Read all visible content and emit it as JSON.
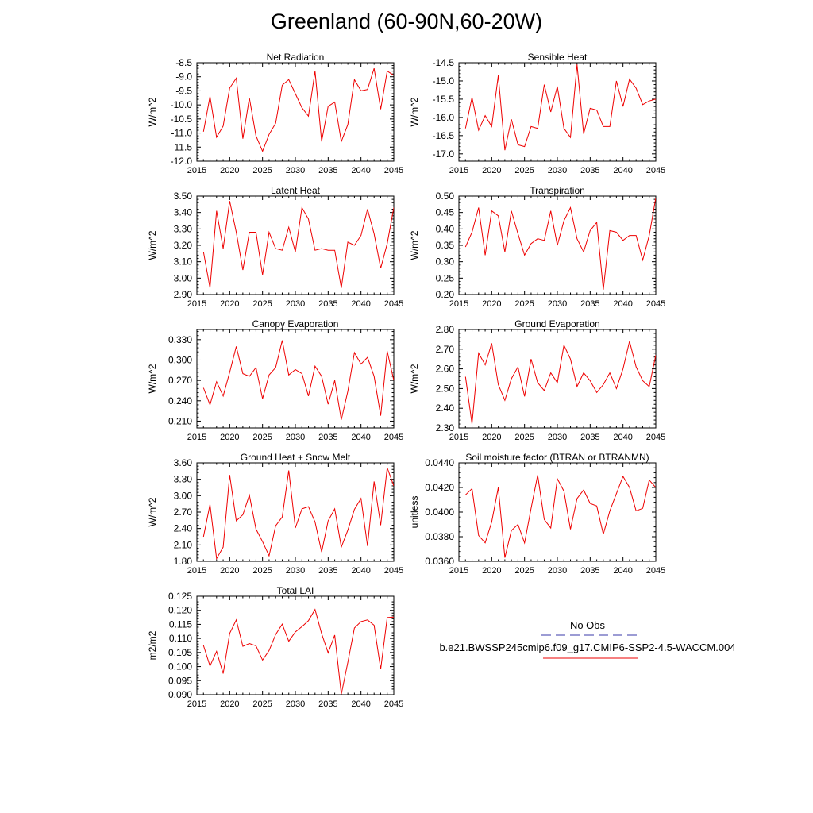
{
  "title": "Greenland (60-90N,60-20W)",
  "colors": {
    "series": "#ee0000",
    "obs": "#3a3aa8",
    "axis": "#000000"
  },
  "legend": {
    "obs_label": "No Obs",
    "case_label": "b.e21.BWSSP245cmip6.f09_g17.CMIP6-SSP2-4.5-WACCM.004"
  },
  "chart_data": [
    {
      "type": "line",
      "title": "Net Radiation",
      "xlabel": "",
      "ylabel": "W/m^2",
      "xlim": [
        2015,
        2045
      ],
      "xticks": [
        2015,
        2020,
        2025,
        2030,
        2035,
        2040,
        2045
      ],
      "xtick_labels": [
        "2015",
        "2020",
        "2025",
        "2030",
        "2035",
        "2040",
        "2045"
      ],
      "ylim": [
        -12.0,
        -8.5
      ],
      "yticks": [
        -12.0,
        -11.5,
        -11.0,
        -10.5,
        -10.0,
        -9.5,
        -9.0,
        -8.5
      ],
      "ytick_labels": [
        "-12.0",
        "-11.5",
        "-11.0",
        "-10.5",
        "-10.0",
        "-9.5",
        "-9.0",
        "-8.5"
      ],
      "x": [
        2016,
        2017,
        2018,
        2019,
        2020,
        2021,
        2022,
        2023,
        2024,
        2025,
        2026,
        2027,
        2028,
        2029,
        2030,
        2031,
        2032,
        2033,
        2034,
        2035,
        2036,
        2037,
        2038,
        2039,
        2040,
        2041,
        2042,
        2043,
        2044,
        2045
      ],
      "values": [
        -10.95,
        -9.7,
        -11.15,
        -10.75,
        -9.4,
        -9.05,
        -11.2,
        -9.75,
        -11.1,
        -11.65,
        -11.05,
        -10.65,
        -9.3,
        -9.1,
        -9.6,
        -10.1,
        -10.4,
        -8.8,
        -11.3,
        -10.05,
        -9.9,
        -11.3,
        -10.7,
        -9.1,
        -9.5,
        -9.45,
        -8.7,
        -10.15,
        -8.8,
        -8.95
      ]
    },
    {
      "type": "line",
      "title": "Sensible Heat",
      "xlabel": "",
      "ylabel": "W/m^2",
      "xlim": [
        2015,
        2045
      ],
      "xticks": [
        2015,
        2020,
        2025,
        2030,
        2035,
        2040,
        2045
      ],
      "xtick_labels": [
        "2015",
        "2020",
        "2025",
        "2030",
        "2035",
        "2040",
        "2045"
      ],
      "ylim": [
        -17.2,
        -14.5
      ],
      "yticks": [
        -17.0,
        -16.5,
        -16.0,
        -15.5,
        -15.0,
        -14.5
      ],
      "ytick_labels": [
        "-17.0",
        "-16.5",
        "-16.0",
        "-15.5",
        "-15.0",
        "-14.5"
      ],
      "x": [
        2016,
        2017,
        2018,
        2019,
        2020,
        2021,
        2022,
        2023,
        2024,
        2025,
        2026,
        2027,
        2028,
        2029,
        2030,
        2031,
        2032,
        2033,
        2034,
        2035,
        2036,
        2037,
        2038,
        2039,
        2040,
        2041,
        2042,
        2043,
        2044,
        2045
      ],
      "values": [
        -16.3,
        -15.45,
        -16.35,
        -15.95,
        -16.25,
        -14.85,
        -16.9,
        -16.05,
        -16.75,
        -16.8,
        -16.25,
        -16.3,
        -15.1,
        -15.85,
        -15.15,
        -16.3,
        -16.55,
        -14.55,
        -16.45,
        -15.75,
        -15.8,
        -16.25,
        -16.25,
        -15.0,
        -15.7,
        -14.95,
        -15.2,
        -15.65,
        -15.55,
        -15.5
      ]
    },
    {
      "type": "line",
      "title": "Latent Heat",
      "xlabel": "",
      "ylabel": "W/m^2",
      "xlim": [
        2015,
        2045
      ],
      "xticks": [
        2015,
        2020,
        2025,
        2030,
        2035,
        2040,
        2045
      ],
      "xtick_labels": [
        "2015",
        "2020",
        "2025",
        "2030",
        "2035",
        "2040",
        "2045"
      ],
      "ylim": [
        2.9,
        3.5
      ],
      "yticks": [
        2.9,
        3.0,
        3.1,
        3.2,
        3.3,
        3.4,
        3.5
      ],
      "ytick_labels": [
        "2.90",
        "3.00",
        "3.10",
        "3.20",
        "3.30",
        "3.40",
        "3.50"
      ],
      "x": [
        2016,
        2017,
        2018,
        2019,
        2020,
        2021,
        2022,
        2023,
        2024,
        2025,
        2026,
        2027,
        2028,
        2029,
        2030,
        2031,
        2032,
        2033,
        2034,
        2035,
        2036,
        2037,
        2038,
        2039,
        2040,
        2041,
        2042,
        2043,
        2044,
        2045
      ],
      "values": [
        3.16,
        2.94,
        3.41,
        3.18,
        3.47,
        3.28,
        3.05,
        3.28,
        3.28,
        3.02,
        3.28,
        3.18,
        3.17,
        3.31,
        3.16,
        3.43,
        3.36,
        3.17,
        3.18,
        3.17,
        3.17,
        2.94,
        3.22,
        3.2,
        3.26,
        3.42,
        3.27,
        3.06,
        3.21,
        3.43
      ]
    },
    {
      "type": "line",
      "title": "Transpiration",
      "xlabel": "",
      "ylabel": "W/m^2",
      "xlim": [
        2015,
        2045
      ],
      "xticks": [
        2015,
        2020,
        2025,
        2030,
        2035,
        2040,
        2045
      ],
      "xtick_labels": [
        "2015",
        "2020",
        "2025",
        "2030",
        "2035",
        "2040",
        "2045"
      ],
      "ylim": [
        0.2,
        0.5
      ],
      "yticks": [
        0.2,
        0.25,
        0.3,
        0.35,
        0.4,
        0.45,
        0.5
      ],
      "ytick_labels": [
        "0.20",
        "0.25",
        "0.30",
        "0.35",
        "0.40",
        "0.45",
        "0.50"
      ],
      "x": [
        2016,
        2017,
        2018,
        2019,
        2020,
        2021,
        2022,
        2023,
        2024,
        2025,
        2026,
        2027,
        2028,
        2029,
        2030,
        2031,
        2032,
        2033,
        2034,
        2035,
        2036,
        2037,
        2038,
        2039,
        2040,
        2041,
        2042,
        2043,
        2044,
        2045
      ],
      "values": [
        0.345,
        0.39,
        0.465,
        0.32,
        0.455,
        0.44,
        0.33,
        0.455,
        0.385,
        0.32,
        0.355,
        0.37,
        0.365,
        0.455,
        0.35,
        0.425,
        0.465,
        0.37,
        0.33,
        0.395,
        0.42,
        0.215,
        0.395,
        0.39,
        0.365,
        0.38,
        0.38,
        0.305,
        0.38,
        0.495
      ]
    },
    {
      "type": "line",
      "title": "Canopy Evaporation",
      "xlabel": "",
      "ylabel": "W/m^2",
      "xlim": [
        2015,
        2045
      ],
      "xticks": [
        2015,
        2020,
        2025,
        2030,
        2035,
        2040,
        2045
      ],
      "xtick_labels": [
        "2015",
        "2020",
        "2025",
        "2030",
        "2035",
        "2040",
        "2045"
      ],
      "ylim": [
        0.2,
        0.345
      ],
      "yticks": [
        0.21,
        0.24,
        0.27,
        0.3,
        0.33
      ],
      "ytick_labels": [
        "0.210",
        "0.240",
        "0.270",
        "0.300",
        "0.330"
      ],
      "x": [
        2016,
        2017,
        2018,
        2019,
        2020,
        2021,
        2022,
        2023,
        2024,
        2025,
        2026,
        2027,
        2028,
        2029,
        2030,
        2031,
        2032,
        2033,
        2034,
        2035,
        2036,
        2037,
        2038,
        2039,
        2040,
        2041,
        2042,
        2043,
        2044,
        2045
      ],
      "values": [
        0.259,
        0.234,
        0.268,
        0.247,
        0.282,
        0.32,
        0.28,
        0.276,
        0.289,
        0.243,
        0.278,
        0.289,
        0.329,
        0.278,
        0.286,
        0.28,
        0.247,
        0.291,
        0.276,
        0.235,
        0.27,
        0.212,
        0.254,
        0.311,
        0.294,
        0.304,
        0.276,
        0.218,
        0.313,
        0.27
      ]
    },
    {
      "type": "line",
      "title": "Ground Evaporation",
      "xlabel": "",
      "ylabel": "W/m^2",
      "xlim": [
        2015,
        2045
      ],
      "xticks": [
        2015,
        2020,
        2025,
        2030,
        2035,
        2040,
        2045
      ],
      "xtick_labels": [
        "2015",
        "2020",
        "2025",
        "2030",
        "2035",
        "2040",
        "2045"
      ],
      "ylim": [
        2.3,
        2.8
      ],
      "yticks": [
        2.3,
        2.4,
        2.5,
        2.6,
        2.7,
        2.8
      ],
      "ytick_labels": [
        "2.30",
        "2.40",
        "2.50",
        "2.60",
        "2.70",
        "2.80"
      ],
      "x": [
        2016,
        2017,
        2018,
        2019,
        2020,
        2021,
        2022,
        2023,
        2024,
        2025,
        2026,
        2027,
        2028,
        2029,
        2030,
        2031,
        2032,
        2033,
        2034,
        2035,
        2036,
        2037,
        2038,
        2039,
        2040,
        2041,
        2042,
        2043,
        2044,
        2045
      ],
      "values": [
        2.56,
        2.32,
        2.68,
        2.62,
        2.73,
        2.52,
        2.44,
        2.55,
        2.61,
        2.46,
        2.65,
        2.53,
        2.49,
        2.58,
        2.53,
        2.72,
        2.65,
        2.51,
        2.58,
        2.54,
        2.48,
        2.52,
        2.58,
        2.5,
        2.6,
        2.74,
        2.61,
        2.54,
        2.51,
        2.67
      ]
    },
    {
      "type": "line",
      "title": "Ground Heat + Snow Melt",
      "xlabel": "",
      "ylabel": "W/m^2",
      "xlim": [
        2015,
        2045
      ],
      "xticks": [
        2015,
        2020,
        2025,
        2030,
        2035,
        2040,
        2045
      ],
      "xtick_labels": [
        "2015",
        "2020",
        "2025",
        "2030",
        "2035",
        "2040",
        "2045"
      ],
      "ylim": [
        1.8,
        3.6
      ],
      "yticks": [
        1.8,
        2.1,
        2.4,
        2.7,
        3.0,
        3.3,
        3.6
      ],
      "ytick_labels": [
        "1.80",
        "2.10",
        "2.40",
        "2.70",
        "3.00",
        "3.30",
        "3.60"
      ],
      "x": [
        2016,
        2017,
        2018,
        2019,
        2020,
        2021,
        2022,
        2023,
        2024,
        2025,
        2026,
        2027,
        2028,
        2029,
        2030,
        2031,
        2032,
        2033,
        2034,
        2035,
        2036,
        2037,
        2038,
        2039,
        2040,
        2041,
        2042,
        2043,
        2044,
        2045
      ],
      "values": [
        2.25,
        2.84,
        1.85,
        2.06,
        3.38,
        2.54,
        2.65,
        3.01,
        2.39,
        2.16,
        1.9,
        2.45,
        2.61,
        3.46,
        2.41,
        2.76,
        2.8,
        2.52,
        1.97,
        2.54,
        2.76,
        2.06,
        2.37,
        2.75,
        2.95,
        2.08,
        3.26,
        2.46,
        3.51,
        3.18
      ]
    },
    {
      "type": "line",
      "title": "Soil moisture factor (BTRAN or BTRANMN)",
      "xlabel": "",
      "ylabel": "unitless",
      "xlim": [
        2015,
        2045
      ],
      "xticks": [
        2015,
        2020,
        2025,
        2030,
        2035,
        2040,
        2045
      ],
      "xtick_labels": [
        "2015",
        "2020",
        "2025",
        "2030",
        "2035",
        "2040",
        "2045"
      ],
      "ylim": [
        0.036,
        0.044
      ],
      "yticks": [
        0.036,
        0.038,
        0.04,
        0.042,
        0.044
      ],
      "ytick_labels": [
        "0.0360",
        "0.0380",
        "0.0400",
        "0.0420",
        "0.0440"
      ],
      "x": [
        2016,
        2017,
        2018,
        2019,
        2020,
        2021,
        2022,
        2023,
        2024,
        2025,
        2026,
        2027,
        2028,
        2029,
        2030,
        2031,
        2032,
        2033,
        2034,
        2035,
        2036,
        2037,
        2038,
        2039,
        2040,
        2041,
        2042,
        2043,
        2044,
        2045
      ],
      "values": [
        0.0414,
        0.0419,
        0.0381,
        0.0375,
        0.0392,
        0.042,
        0.0363,
        0.0385,
        0.039,
        0.0375,
        0.0403,
        0.043,
        0.0394,
        0.0387,
        0.0427,
        0.0417,
        0.0386,
        0.0411,
        0.0418,
        0.0407,
        0.0405,
        0.0382,
        0.0401,
        0.0415,
        0.0429,
        0.042,
        0.0401,
        0.0403,
        0.0426,
        0.042
      ]
    },
    {
      "type": "line",
      "title": "Total LAI",
      "xlabel": "",
      "ylabel": "m2/m2",
      "xlim": [
        2015,
        2045
      ],
      "xticks": [
        2015,
        2020,
        2025,
        2030,
        2035,
        2040,
        2045
      ],
      "xtick_labels": [
        "2015",
        "2020",
        "2025",
        "2030",
        "2035",
        "2040",
        "2045"
      ],
      "ylim": [
        0.09,
        0.125
      ],
      "yticks": [
        0.09,
        0.095,
        0.1,
        0.105,
        0.11,
        0.115,
        0.12,
        0.125
      ],
      "ytick_labels": [
        "0.090",
        "0.095",
        "0.100",
        "0.105",
        "0.110",
        "0.115",
        "0.120",
        "0.125"
      ],
      "x": [
        2016,
        2017,
        2018,
        2019,
        2020,
        2021,
        2022,
        2023,
        2024,
        2025,
        2026,
        2027,
        2028,
        2029,
        2030,
        2031,
        2032,
        2033,
        2034,
        2035,
        2036,
        2037,
        2038,
        2039,
        2040,
        2041,
        2042,
        2043,
        2044,
        2045
      ],
      "values": [
        0.1075,
        0.1002,
        0.1054,
        0.0975,
        0.1118,
        0.1166,
        0.1072,
        0.1082,
        0.1074,
        0.1023,
        0.1057,
        0.1114,
        0.1151,
        0.109,
        0.1123,
        0.1142,
        0.1163,
        0.1203,
        0.1117,
        0.1049,
        0.1112,
        0.0902,
        0.1015,
        0.1137,
        0.116,
        0.1166,
        0.1147,
        0.0991,
        0.1174,
        0.1176
      ]
    }
  ]
}
